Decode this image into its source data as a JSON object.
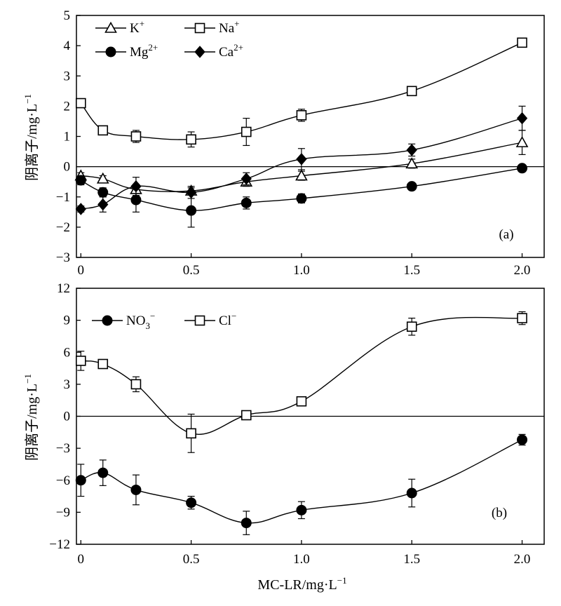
{
  "chart_data": [
    {
      "type": "line",
      "panel_label": "(a)",
      "xlabel": "MC-LR/mg·L⁻¹",
      "ylabel": "阴离子/mg·L⁻¹",
      "xlim": [
        -0.02,
        2.1
      ],
      "ylim": [
        -3,
        5
      ],
      "x": [
        0,
        0.1,
        0.25,
        0.5,
        0.75,
        1.0,
        1.5,
        2.0
      ],
      "x_tick_labels": [
        "0",
        "0.5",
        "1.0",
        "1.5",
        "2.0"
      ],
      "y_tick_labels": [
        "−3",
        "−2",
        "−1",
        "0",
        "1",
        "2",
        "3",
        "4",
        "5"
      ],
      "zero_line": true,
      "legend_position": "top-left",
      "series": [
        {
          "name": "K+",
          "label_base": "K",
          "label_sup": "+",
          "marker": "open-triangle",
          "icon": "triangle-open-marker-icon",
          "values": [
            -0.3,
            -0.4,
            -0.75,
            -0.8,
            -0.5,
            -0.3,
            0.1,
            0.8
          ],
          "errors": [
            0.1,
            0.1,
            0.1,
            0.1,
            0.15,
            0.15,
            0.15,
            0.4
          ]
        },
        {
          "name": "Na+",
          "label_base": "Na",
          "label_sup": "+",
          "marker": "open-square",
          "icon": "square-open-marker-icon",
          "values": [
            2.1,
            1.2,
            1.0,
            0.9,
            1.15,
            1.7,
            2.5,
            4.1
          ],
          "errors": [
            0.1,
            0.1,
            0.2,
            0.25,
            0.45,
            0.2,
            0.1,
            0.1
          ]
        },
        {
          "name": "Mg2+",
          "label_base": "Mg",
          "label_sup": "2+",
          "marker": "filled-circle",
          "icon": "circle-filled-marker-icon",
          "values": [
            -0.45,
            -0.85,
            -1.1,
            -1.45,
            -1.2,
            -1.05,
            -0.65,
            -0.05
          ],
          "errors": [
            0.15,
            0.15,
            0.4,
            0.55,
            0.2,
            0.15,
            0.1,
            0.1
          ]
        },
        {
          "name": "Ca2+",
          "label_base": "Ca",
          "label_sup": "2+",
          "marker": "filled-diamond",
          "icon": "diamond-filled-marker-icon",
          "values": [
            -1.4,
            -1.25,
            -0.65,
            -0.85,
            -0.4,
            0.25,
            0.55,
            1.6
          ],
          "errors": [
            0.1,
            0.25,
            0.3,
            0.2,
            0.2,
            0.35,
            0.2,
            0.4
          ]
        }
      ]
    },
    {
      "type": "line",
      "panel_label": "(b)",
      "xlabel": "MC-LR/mg·L⁻¹",
      "ylabel": "阴离子/mg·L⁻¹",
      "xlim": [
        -0.02,
        2.1
      ],
      "ylim": [
        -12,
        12
      ],
      "x": [
        0,
        0.1,
        0.25,
        0.5,
        0.75,
        1.0,
        1.5,
        2.0
      ],
      "x_tick_labels": [
        "0",
        "0.5",
        "1.0",
        "1.5",
        "2.0"
      ],
      "y_tick_labels": [
        "−12",
        "−9",
        "−6",
        "−3",
        "0",
        "3",
        "6",
        "9",
        "12"
      ],
      "zero_line": true,
      "legend_position": "top-left",
      "series": [
        {
          "name": "NO3−",
          "label_base": "NO",
          "label_sub": "3",
          "label_sup": "−",
          "marker": "filled-circle",
          "icon": "circle-filled-marker-icon",
          "values": [
            -6.0,
            -5.3,
            -6.9,
            -8.1,
            -10.0,
            -8.8,
            -7.2,
            -2.2
          ],
          "errors": [
            1.5,
            1.2,
            1.4,
            0.6,
            1.1,
            0.8,
            1.3,
            0.5
          ]
        },
        {
          "name": "Cl−",
          "label_base": "Cl",
          "label_sup": "−",
          "marker": "open-square",
          "icon": "square-open-marker-icon",
          "values": [
            5.2,
            4.9,
            3.0,
            -1.6,
            0.1,
            1.4,
            8.4,
            9.2
          ],
          "errors": [
            0.9,
            0.3,
            0.7,
            1.8,
            0.3,
            0.3,
            0.8,
            0.6
          ]
        }
      ]
    }
  ]
}
